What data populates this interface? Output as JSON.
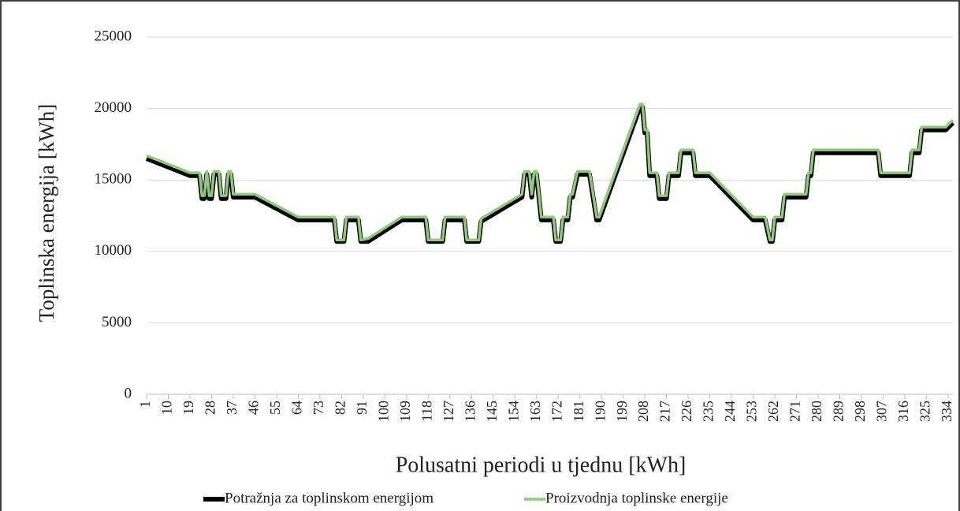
{
  "chart_data": {
    "type": "line",
    "y_axis_label": "Toplinska energija [kWh]",
    "x_axis_label": "Polusatni periodi u tjednu [kWh]",
    "x": [
      1,
      19,
      23,
      24,
      25,
      26,
      27,
      28,
      29,
      31,
      32,
      34,
      35,
      36,
      37,
      46,
      64,
      79,
      80,
      83,
      84,
      89,
      90,
      93,
      107,
      117,
      118,
      124,
      125,
      133,
      134,
      139,
      140,
      157,
      158,
      160,
      161,
      162,
      163,
      164,
      165,
      170,
      171,
      173,
      174,
      176,
      177,
      178,
      180,
      185,
      188,
      189,
      206,
      207,
      208,
      209,
      210,
      213,
      214,
      217,
      218,
      222,
      223,
      228,
      229,
      235,
      253,
      258,
      260,
      261,
      262,
      265,
      266,
      275,
      276,
      277,
      278,
      305,
      306,
      318,
      319,
      322,
      323,
      333,
      336
    ],
    "series": [
      {
        "name": "Potražnja za toplinskom energijom",
        "color": "#000000",
        "values": [
          16500,
          15300,
          15300,
          13700,
          13700,
          15400,
          13700,
          13700,
          15400,
          15400,
          13700,
          13700,
          15400,
          15400,
          13800,
          13800,
          12200,
          12200,
          10700,
          10700,
          12200,
          12200,
          10700,
          10700,
          12200,
          12200,
          10700,
          10700,
          12200,
          12200,
          10700,
          10700,
          12100,
          13800,
          15400,
          15400,
          13800,
          15400,
          15400,
          13800,
          12200,
          12200,
          10700,
          10700,
          12200,
          12200,
          13800,
          13800,
          15400,
          15400,
          12200,
          12200,
          20100,
          20100,
          18300,
          18300,
          15300,
          15300,
          13700,
          13700,
          15300,
          15300,
          16900,
          16900,
          15300,
          15300,
          12200,
          12200,
          10700,
          10700,
          12200,
          12200,
          13800,
          13800,
          15300,
          15300,
          16900,
          16900,
          15300,
          15300,
          16900,
          16900,
          18500,
          18500,
          19000
        ]
      },
      {
        "name": "Proizvodnja toplinske energije",
        "color": "#8fc97a",
        "values": [
          16700,
          15500,
          15500,
          13900,
          13900,
          15600,
          13900,
          13900,
          15600,
          15600,
          13900,
          13900,
          15600,
          15600,
          14000,
          14000,
          12400,
          12400,
          10800,
          10800,
          12400,
          12400,
          10800,
          10900,
          12400,
          12400,
          10800,
          10800,
          12400,
          12400,
          10800,
          10800,
          12300,
          14000,
          15600,
          15600,
          14000,
          15600,
          15600,
          14000,
          12400,
          12400,
          10800,
          10800,
          12400,
          12400,
          14000,
          14000,
          15600,
          15600,
          12400,
          12400,
          20300,
          20300,
          18500,
          18500,
          15500,
          15500,
          13900,
          13900,
          15500,
          15500,
          17100,
          17100,
          15500,
          15500,
          12400,
          12400,
          10800,
          10800,
          12400,
          12400,
          14000,
          14000,
          15500,
          15500,
          17100,
          17100,
          15500,
          15500,
          17100,
          17100,
          18700,
          18700,
          19200
        ]
      }
    ],
    "xlim": [
      1,
      336
    ],
    "xticks": [
      1,
      10,
      19,
      28,
      37,
      46,
      55,
      64,
      73,
      82,
      91,
      100,
      109,
      118,
      127,
      136,
      145,
      154,
      163,
      172,
      181,
      190,
      199,
      208,
      217,
      226,
      235,
      244,
      253,
      262,
      271,
      280,
      289,
      298,
      307,
      316,
      325,
      334
    ],
    "ylim": [
      0,
      25000
    ],
    "yticks": [
      0,
      5000,
      10000,
      15000,
      20000,
      25000
    ],
    "grid": true
  }
}
